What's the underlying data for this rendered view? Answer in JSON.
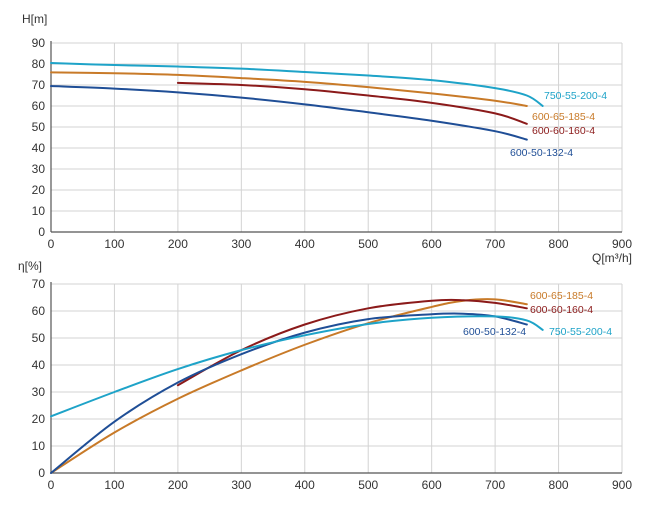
{
  "chart_data": [
    {
      "type": "line",
      "ylabel": "H[m]",
      "xlabel": "",
      "xlim": [
        0,
        900
      ],
      "ylim": [
        0,
        90
      ],
      "xticks": [
        0,
        100,
        200,
        300,
        400,
        500,
        600,
        700,
        800,
        900
      ],
      "yticks": [
        0,
        10,
        20,
        30,
        40,
        50,
        60,
        70,
        80,
        90
      ],
      "grid": true,
      "series": [
        {
          "name": "750-55-200-4",
          "color": "#1ea3c8",
          "points": [
            [
              0,
              80.5
            ],
            [
              100,
              79.5
            ],
            [
              200,
              78.8
            ],
            [
              300,
              77.8
            ],
            [
              400,
              76.2
            ],
            [
              500,
              74.5
            ],
            [
              600,
              72.3
            ],
            [
              700,
              68.5
            ],
            [
              750,
              65.0
            ],
            [
              775,
              60.0
            ]
          ]
        },
        {
          "name": "600-65-185-4",
          "color": "#c87a28",
          "points": [
            [
              0,
              76.0
            ],
            [
              100,
              75.6
            ],
            [
              200,
              74.8
            ],
            [
              300,
              73.3
            ],
            [
              400,
              71.5
            ],
            [
              500,
              69.0
            ],
            [
              600,
              66.0
            ],
            [
              700,
              62.5
            ],
            [
              750,
              60.0
            ]
          ]
        },
        {
          "name": "600-60-160-4",
          "color": "#8b1a1a",
          "points": [
            [
              200,
              71.0
            ],
            [
              300,
              70.0
            ],
            [
              400,
              68.0
            ],
            [
              500,
              65.0
            ],
            [
              600,
              61.5
            ],
            [
              700,
              56.5
            ],
            [
              750,
              51.5
            ]
          ]
        },
        {
          "name": "600-50-132-4",
          "color": "#1f4e96",
          "points": [
            [
              0,
              69.5
            ],
            [
              100,
              68.3
            ],
            [
              200,
              66.5
            ],
            [
              300,
              64.0
            ],
            [
              400,
              60.8
            ],
            [
              500,
              57.0
            ],
            [
              600,
              53.0
            ],
            [
              700,
              48.0
            ],
            [
              750,
              44.0
            ]
          ]
        }
      ]
    },
    {
      "type": "line",
      "ylabel": "η[%]",
      "xlabel": "Q[m³/h]",
      "xlim": [
        0,
        900
      ],
      "ylim": [
        0,
        70
      ],
      "xticks": [
        0,
        100,
        200,
        300,
        400,
        500,
        600,
        700,
        800,
        900
      ],
      "yticks": [
        0,
        10,
        20,
        30,
        40,
        50,
        60,
        70
      ],
      "grid": true,
      "series": [
        {
          "name": "600-65-185-4",
          "color": "#c87a28",
          "points": [
            [
              0,
              0
            ],
            [
              100,
              15
            ],
            [
              200,
              27.5
            ],
            [
              300,
              38.0
            ],
            [
              400,
              47.5
            ],
            [
              500,
              55.5
            ],
            [
              600,
              61.5
            ],
            [
              650,
              63.8
            ],
            [
              700,
              64.3
            ],
            [
              750,
              62.5
            ]
          ]
        },
        {
          "name": "600-60-160-4",
          "color": "#8b1a1a",
          "points": [
            [
              200,
              32.5
            ],
            [
              300,
              45.5
            ],
            [
              400,
              55.0
            ],
            [
              500,
              61.0
            ],
            [
              600,
              63.8
            ],
            [
              650,
              64.0
            ],
            [
              700,
              63.0
            ],
            [
              750,
              61.0
            ]
          ]
        },
        {
          "name": "600-50-132-4",
          "color": "#1f4e96",
          "points": [
            [
              0,
              0
            ],
            [
              100,
              19.0
            ],
            [
              200,
              33.5
            ],
            [
              300,
              44.0
            ],
            [
              400,
              52.0
            ],
            [
              500,
              57.0
            ],
            [
              600,
              58.8
            ],
            [
              650,
              59.0
            ],
            [
              700,
              58.0
            ],
            [
              750,
              55.0
            ]
          ]
        },
        {
          "name": "750-55-200-4",
          "color": "#1ea3c8",
          "points": [
            [
              0,
              21.0
            ],
            [
              100,
              30.0
            ],
            [
              200,
              38.5
            ],
            [
              300,
              45.5
            ],
            [
              400,
              51.0
            ],
            [
              500,
              55.2
            ],
            [
              600,
              57.5
            ],
            [
              700,
              58.0
            ],
            [
              750,
              56.5
            ],
            [
              775,
              53.0
            ]
          ]
        }
      ]
    }
  ],
  "labels": {
    "top_ylabel": "H[m]",
    "bottom_ylabel": "η[%]",
    "x_title": "Q[m³/h]"
  }
}
